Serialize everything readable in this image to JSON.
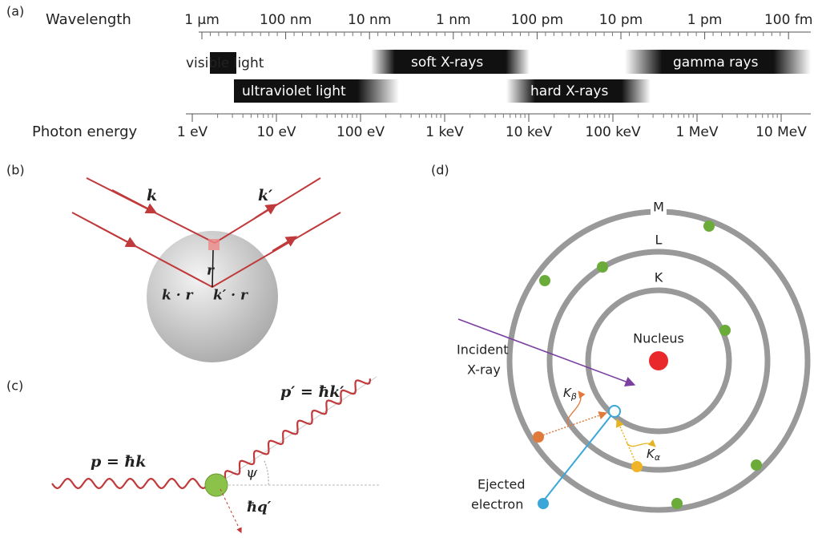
{
  "panel_a": {
    "label": "(a)",
    "wavelength_title": "Wavelength",
    "wavelengths": [
      "1 µm",
      "100 nm",
      "10 nm",
      "1 nm",
      "100 pm",
      "10 pm",
      "1 pm",
      "100 fm"
    ],
    "bands": [
      "visible light",
      "ultraviolet light",
      "soft X-rays",
      "hard X-rays",
      "gamma rays"
    ],
    "energy_title": "Photon energy",
    "energies": [
      "1 eV",
      "10 eV",
      "100 eV",
      "1 keV",
      "10 keV",
      "100 keV",
      "1 MeV",
      "10 MeV"
    ]
  },
  "panel_b": {
    "label": "(b)",
    "k": "k",
    "k_prime": "k′",
    "r": "r",
    "k_dot_r": "k · r",
    "kp_dot_r": "k′ · r"
  },
  "panel_c": {
    "label": "(c)",
    "p_prime": "p′ = ħk′",
    "p": "p = ħk",
    "psi": "ψ",
    "hq": "ħq′"
  },
  "panel_d": {
    "label": "(d)",
    "shell_m": "M",
    "shell_l": "L",
    "shell_k": "K",
    "nucleus": "Nucleus",
    "incident": [
      "Incident",
      "X-ray"
    ],
    "k_beta": {
      "main": "K",
      "sub": "β"
    },
    "k_alpha": {
      "main": "K",
      "sub": "α"
    },
    "ejected": [
      "Ejected",
      "electron"
    ]
  }
}
